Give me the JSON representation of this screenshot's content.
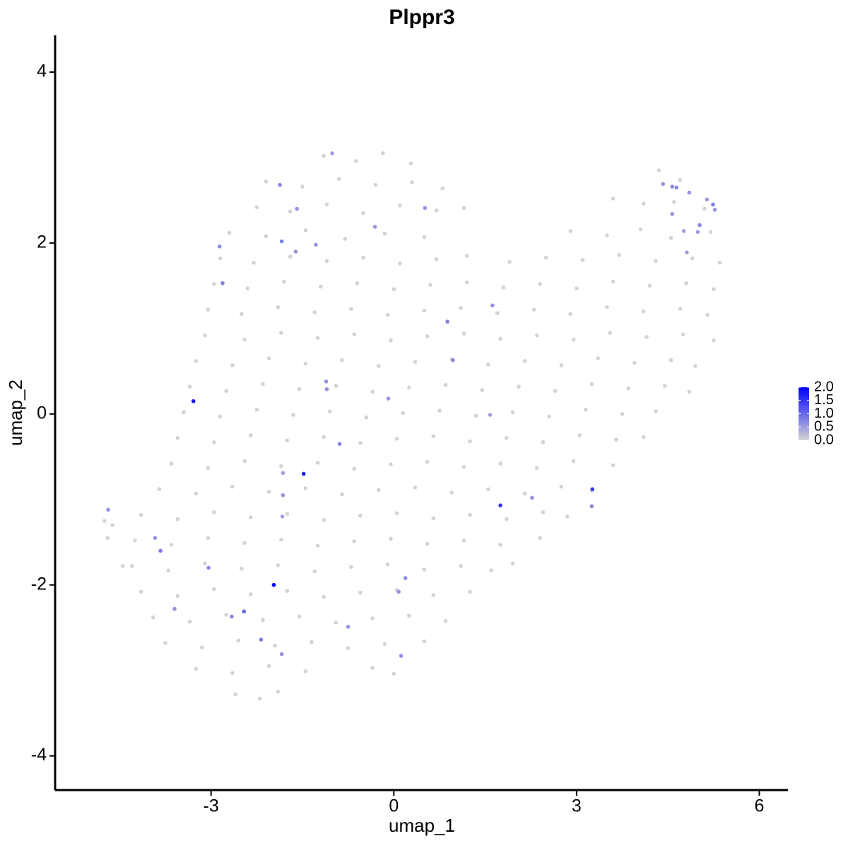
{
  "chart_data": {
    "type": "scatter",
    "title": "Plppr3",
    "x_label": "umap_1",
    "y_label": "umap_2",
    "xlim": [
      -5.56,
      6.47
    ],
    "ylim": [
      -4.4,
      4.43
    ],
    "xticks": [
      -3,
      0,
      3,
      6
    ],
    "yticks": [
      -4,
      -2,
      0,
      2,
      4
    ],
    "color_low": "#d3d3d3",
    "color_high": "#0000ff",
    "color_lim": [
      0,
      2
    ],
    "color_ticks": [
      {
        "value": 0,
        "label": "0.0"
      },
      {
        "value": 0.5,
        "label": "0.5"
      },
      {
        "value": 1,
        "label": "1.0"
      },
      {
        "value": 1.5,
        "label": "1.5"
      },
      {
        "value": 2,
        "label": "2.0"
      }
    ],
    "x": [
      -1.15,
      -0.62,
      -0.18,
      0.28,
      -2.1,
      -1.5,
      -0.9,
      -0.3,
      0.3,
      0.8,
      4.35,
      4.7,
      -2.25,
      -1.7,
      -1.1,
      -0.5,
      0.1,
      0.7,
      1.15,
      3.6,
      4.1,
      4.6,
      5.1,
      -2.7,
      -2.1,
      -1.45,
      -0.8,
      -0.15,
      0.5,
      2.9,
      3.5,
      4.05,
      4.55,
      5.2,
      -2.85,
      -2.3,
      -1.7,
      -1.1,
      -0.5,
      0.1,
      0.7,
      1.2,
      1.9,
      2.5,
      3.1,
      3.7,
      4.3,
      4.9,
      5.35,
      -2.95,
      -2.4,
      -1.8,
      -1.2,
      -0.6,
      0,
      0.6,
      1.2,
      1.8,
      2.4,
      3.0,
      3.6,
      4.2,
      4.8,
      5.25,
      -3.05,
      -2.5,
      -1.9,
      -1.3,
      -0.7,
      -0.1,
      0.5,
      1.1,
      1.7,
      2.3,
      2.9,
      3.5,
      4.1,
      4.7,
      5.15,
      -3.1,
      -2.45,
      -1.85,
      -1.25,
      -0.65,
      -0.05,
      0.55,
      1.15,
      1.75,
      2.35,
      2.95,
      3.55,
      4.15,
      4.75,
      5.25,
      -3.25,
      -2.65,
      -2.05,
      -1.45,
      -0.85,
      -0.25,
      0.35,
      0.95,
      1.55,
      2.15,
      2.75,
      3.35,
      3.95,
      4.55,
      4.95,
      -3.35,
      -2.75,
      -2.15,
      -1.55,
      -0.95,
      -0.35,
      0.25,
      0.85,
      1.45,
      2.05,
      2.65,
      3.25,
      3.85,
      4.45,
      4.85,
      -3.45,
      -2.85,
      -2.25,
      -1.65,
      -1.05,
      -0.45,
      0.15,
      0.75,
      1.35,
      1.95,
      2.55,
      3.15,
      3.75,
      4.3,
      -3.55,
      -2.95,
      -2.35,
      -1.75,
      -1.15,
      -0.55,
      0.05,
      0.65,
      1.25,
      1.85,
      2.45,
      3.05,
      3.65,
      4.1,
      -3.65,
      -3.05,
      -2.45,
      -1.85,
      -1.25,
      -0.65,
      -0.05,
      0.55,
      1.15,
      1.75,
      2.35,
      2.95,
      3.6,
      -3.85,
      -3.25,
      -2.65,
      -2.05,
      -1.45,
      -0.85,
      -0.25,
      0.35,
      0.95,
      1.55,
      2.15,
      2.75,
      3.25,
      -4.15,
      -3.55,
      -2.95,
      -2.35,
      -1.75,
      -1.15,
      -0.55,
      0.05,
      0.65,
      1.25,
      1.85,
      2.45,
      2.85,
      -4.25,
      -3.65,
      -3.05,
      -2.45,
      -1.85,
      -1.25,
      -0.65,
      -0.05,
      0.55,
      1.15,
      1.75,
      2.4,
      -4.3,
      -3.7,
      -3.1,
      -2.5,
      -1.9,
      -1.3,
      -0.7,
      -0.1,
      0.5,
      1.1,
      1.6,
      1.95,
      -4.15,
      -3.55,
      -2.95,
      -2.35,
      -1.75,
      -1.15,
      -0.55,
      0.05,
      0.65,
      1.25,
      -3.95,
      -3.35,
      -2.75,
      -2.15,
      -1.55,
      -0.95,
      -0.35,
      0.25,
      0.85,
      -3.75,
      -3.15,
      -2.55,
      -1.95,
      -1.35,
      -0.75,
      -0.15,
      0.5,
      -3.25,
      -2.65,
      -2.05,
      -1.45,
      -0.35,
      0.0,
      -2.6,
      -2.2,
      -1.9,
      -4.75,
      -4.62,
      -4.7,
      -4.45,
      -3.29,
      -1.97,
      -1.48,
      1.75,
      3.26,
      -4.69,
      -3.92,
      -3.83,
      -3.04,
      -3.6,
      -2.66,
      -2.46,
      -2.18,
      -1.84,
      -0.75,
      0.12,
      0.08,
      0.19,
      -1.82,
      -1.82,
      -1.83,
      -0.89,
      -1.1,
      -1.11,
      -0.09,
      1.58,
      2.27,
      3.25,
      0.97,
      0.88,
      1.62,
      -2.81,
      -2.86,
      -1.84,
      -1.87,
      -1.59,
      -1.61,
      -1.28,
      -1.01,
      -0.31,
      0.51,
      4.42,
      4.57,
      4.64,
      4.85,
      5.14,
      5.24,
      5.27,
      4.57,
      4.76,
      5.02,
      4.99,
      4.81
    ],
    "y": [
      3.02,
      2.96,
      3.05,
      2.93,
      2.72,
      2.66,
      2.75,
      2.68,
      2.71,
      2.64,
      2.85,
      2.74,
      2.42,
      2.37,
      2.45,
      2.35,
      2.44,
      2.38,
      2.41,
      2.52,
      2.46,
      2.48,
      2.4,
      2.12,
      2.08,
      2.15,
      2.05,
      2.11,
      2.07,
      2.14,
      2.09,
      2.16,
      2.06,
      2.13,
      1.82,
      1.77,
      1.84,
      1.79,
      1.83,
      1.76,
      1.81,
      1.85,
      1.78,
      1.83,
      1.8,
      1.86,
      1.79,
      1.82,
      1.77,
      1.52,
      1.47,
      1.55,
      1.49,
      1.53,
      1.46,
      1.51,
      1.54,
      1.48,
      1.52,
      1.47,
      1.55,
      1.5,
      1.53,
      1.46,
      1.22,
      1.17,
      1.25,
      1.19,
      1.23,
      1.16,
      1.21,
      1.24,
      1.18,
      1.22,
      1.17,
      1.25,
      1.2,
      1.23,
      1.16,
      0.92,
      0.87,
      0.95,
      0.89,
      0.93,
      0.86,
      0.91,
      0.94,
      0.88,
      0.92,
      0.87,
      0.95,
      0.9,
      0.93,
      0.86,
      0.62,
      0.57,
      0.65,
      0.59,
      0.63,
      0.56,
      0.61,
      0.64,
      0.58,
      0.62,
      0.57,
      0.65,
      0.6,
      0.63,
      0.56,
      0.32,
      0.27,
      0.35,
      0.29,
      0.33,
      0.26,
      0.31,
      0.34,
      0.28,
      0.32,
      0.27,
      0.35,
      0.3,
      0.33,
      0.26,
      0.02,
      -0.03,
      0.05,
      -0.01,
      0.03,
      -0.04,
      0.01,
      0.04,
      -0.02,
      0.02,
      -0.03,
      0.05,
      0,
      0.03,
      -0.28,
      -0.33,
      -0.25,
      -0.31,
      -0.27,
      -0.34,
      -0.29,
      -0.26,
      -0.32,
      -0.28,
      -0.33,
      -0.25,
      -0.3,
      -0.27,
      -0.58,
      -0.63,
      -0.55,
      -0.61,
      -0.57,
      -0.64,
      -0.59,
      -0.56,
      -0.62,
      -0.58,
      -0.63,
      -0.55,
      -0.6,
      -0.88,
      -0.93,
      -0.85,
      -0.91,
      -0.87,
      -0.94,
      -0.89,
      -0.86,
      -0.92,
      -0.88,
      -0.93,
      -0.85,
      -0.9,
      -1.18,
      -1.23,
      -1.15,
      -1.21,
      -1.17,
      -1.24,
      -1.19,
      -1.16,
      -1.22,
      -1.18,
      -1.23,
      -1.15,
      -1.2,
      -1.48,
      -1.53,
      -1.45,
      -1.51,
      -1.47,
      -1.54,
      -1.49,
      -1.46,
      -1.52,
      -1.48,
      -1.53,
      -1.45,
      -1.78,
      -1.83,
      -1.75,
      -1.81,
      -1.77,
      -1.84,
      -1.79,
      -1.76,
      -1.82,
      -1.78,
      -1.83,
      -1.75,
      -2.08,
      -2.13,
      -2.05,
      -2.11,
      -2.07,
      -2.14,
      -2.09,
      -2.06,
      -2.12,
      -2.08,
      -2.38,
      -2.43,
      -2.35,
      -2.41,
      -2.37,
      -2.44,
      -2.39,
      -2.36,
      -2.42,
      -2.68,
      -2.73,
      -2.65,
      -2.71,
      -2.67,
      -2.74,
      -2.69,
      -2.66,
      -2.98,
      -3.03,
      -2.95,
      -3.01,
      -2.97,
      -3.04,
      -3.28,
      -3.33,
      -3.25,
      -1.25,
      -1.3,
      -1.45,
      -1.78,
      0.15,
      -2.0,
      -0.7,
      -1.07,
      -0.88,
      -1.12,
      -1.45,
      -1.6,
      -1.8,
      -2.28,
      -2.37,
      -2.31,
      -2.64,
      -2.81,
      -2.49,
      -2.83,
      -2.08,
      -1.92,
      -0.95,
      -0.69,
      -1.2,
      -0.35,
      0.29,
      0.38,
      0.18,
      -0.01,
      -0.98,
      -1.08,
      0.63,
      1.08,
      1.27,
      1.53,
      1.96,
      2.02,
      2.68,
      2.4,
      1.9,
      1.98,
      3.05,
      2.19,
      2.41,
      2.69,
      2.66,
      2.65,
      2.59,
      2.51,
      2.45,
      2.39,
      2.34,
      2.14,
      2.21,
      2.13,
      1.89
    ],
    "values": [
      0,
      0,
      0,
      0,
      0,
      0,
      0,
      0,
      0,
      0,
      0,
      0,
      0,
      0,
      0,
      0,
      0,
      0,
      0,
      0,
      0,
      0,
      0,
      0,
      0,
      0,
      0,
      0,
      0,
      0,
      0,
      0,
      0,
      0,
      0,
      0,
      0,
      0,
      0,
      0,
      0,
      0,
      0,
      0,
      0,
      0,
      0,
      0,
      0,
      0,
      0,
      0,
      0,
      0,
      0,
      0,
      0,
      0,
      0,
      0,
      0,
      0,
      0,
      0,
      0,
      0,
      0,
      0,
      0,
      0,
      0,
      0,
      0,
      0,
      0,
      0,
      0,
      0,
      0,
      0,
      0,
      0,
      0,
      0,
      0,
      0,
      0,
      0,
      0,
      0,
      0,
      0,
      0,
      0,
      0,
      0,
      0,
      0,
      0,
      0,
      0,
      0,
      0,
      0,
      0,
      0,
      0,
      0,
      0,
      0,
      0,
      0,
      0,
      0,
      0,
      0,
      0,
      0,
      0,
      0,
      0,
      0,
      0,
      0,
      0,
      0,
      0,
      0,
      0,
      0,
      0,
      0,
      0,
      0,
      0,
      0,
      0,
      0,
      0,
      0,
      0,
      0,
      0,
      0,
      0,
      0,
      0,
      0,
      0,
      0,
      0,
      0,
      0,
      0,
      0,
      0,
      0,
      0,
      0,
      0,
      0,
      0,
      0,
      0,
      0,
      0,
      0,
      0,
      0,
      0,
      0,
      0,
      0,
      0,
      0,
      0,
      0,
      0,
      0,
      0,
      0,
      0,
      0,
      0,
      0,
      0,
      0,
      0,
      0,
      0,
      0,
      0,
      0,
      0,
      0,
      0,
      0,
      0,
      0,
      0,
      0,
      0,
      0,
      0,
      0,
      0,
      0,
      0,
      0,
      0,
      0,
      0,
      0,
      0,
      0,
      0,
      0,
      0,
      0,
      0,
      0,
      0,
      0,
      0,
      0,
      0,
      0,
      0,
      0,
      0,
      0,
      0,
      0,
      0,
      0,
      0,
      0,
      0,
      0,
      0,
      0,
      0,
      0,
      0,
      0,
      0,
      0,
      0,
      0,
      0,
      0,
      0,
      0,
      0,
      0,
      1.8,
      2.0,
      1.7,
      1.5,
      1.5,
      0.6,
      0.6,
      0.8,
      0.7,
      0.6,
      0.7,
      1.0,
      0.8,
      0.6,
      0.6,
      0.6,
      0.6,
      0.7,
      0.6,
      0.5,
      0.5,
      0.7,
      0.6,
      0.6,
      0.6,
      0.5,
      0.6,
      0.7,
      0.7,
      0.8,
      0.6,
      0.8,
      0.7,
      0.8,
      0.7,
      0.6,
      0.6,
      0.6,
      0.5,
      0.6,
      0.6,
      0.6,
      0.7,
      0.7,
      0.6,
      0.5,
      0.8,
      0.6,
      0.6,
      0.5,
      0.7,
      0.5,
      0.5
    ]
  }
}
